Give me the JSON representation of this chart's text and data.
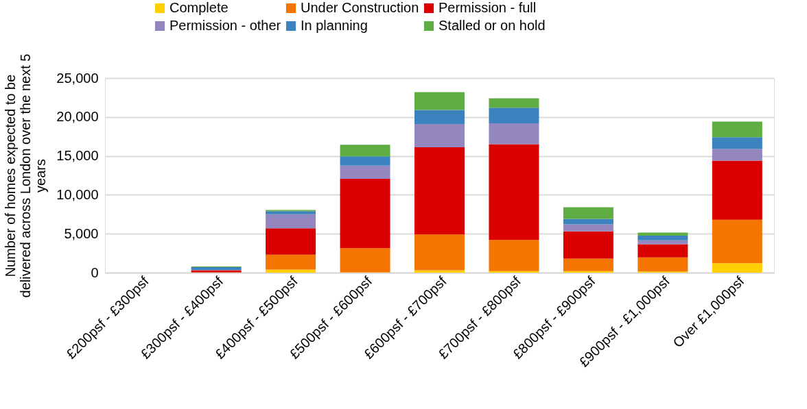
{
  "chart_data": {
    "type": "bar",
    "stacked": true,
    "ylabel": "Number of homes expected to be delivered across London over the next 5 years",
    "categories": [
      "£200psf - £300psf",
      "£300psf - £400psf",
      "£400psf - £500psf",
      "£500psf - £600psf",
      "£600psf - £700psf",
      "£700psf - £800psf",
      "£800psf - £900psf",
      "£900psf - £1,000psf",
      "Over £1,000psf"
    ],
    "series": [
      {
        "name": "Complete",
        "color": "#ffd000",
        "values": [
          0,
          0,
          400,
          50,
          300,
          200,
          200,
          150,
          1200
        ]
      },
      {
        "name": "Under Construction",
        "color": "#f47500",
        "values": [
          0,
          50,
          1900,
          3100,
          4600,
          4000,
          1600,
          1800,
          5600
        ]
      },
      {
        "name": "Permission - full",
        "color": "#da0000",
        "values": [
          0,
          250,
          3400,
          8900,
          11200,
          12300,
          3500,
          1700,
          7600
        ]
      },
      {
        "name": "Permission - other",
        "color": "#9487c0",
        "values": [
          0,
          50,
          1800,
          1700,
          3000,
          2700,
          900,
          500,
          1500
        ]
      },
      {
        "name": "In planning",
        "color": "#3b82be",
        "values": [
          0,
          350,
          400,
          1200,
          1800,
          2000,
          700,
          600,
          1500
        ]
      },
      {
        "name": "Stalled or on hold",
        "color": "#60ad44",
        "values": [
          0,
          100,
          150,
          1500,
          2300,
          1200,
          1500,
          400,
          2000
        ]
      }
    ],
    "ylim": [
      0,
      25000
    ],
    "yticks": [
      {
        "value": 0,
        "label": "0"
      },
      {
        "value": 5000,
        "label": "5,000"
      },
      {
        "value": 10000,
        "label": "10,000"
      },
      {
        "value": 15000,
        "label": "15,000"
      },
      {
        "value": 20000,
        "label": "20,000"
      },
      {
        "value": 25000,
        "label": "25,000"
      }
    ],
    "grid": "y",
    "legend": "top"
  }
}
